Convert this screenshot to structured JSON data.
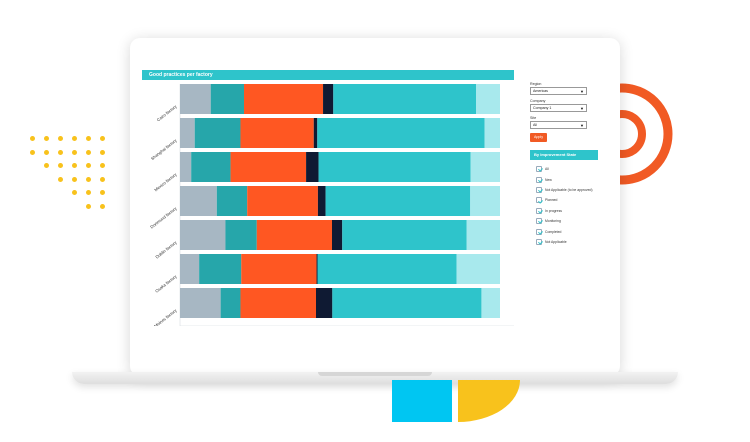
{
  "chart_panel": {
    "title": "Good practices per factory"
  },
  "chart_data": {
    "type": "bar",
    "orientation": "horizontal",
    "stacked": "percent",
    "title": "Good practices per factory",
    "categories": [
      "Cairo factory",
      "Shanghai factory",
      "Mexico factory",
      "Dortmund factory",
      "Dublin factory",
      "Osaka factory",
      "Des Moines factory"
    ],
    "series": [
      {
        "color": "#a7b7c3",
        "values": [
          9.6,
          4.6,
          3.5,
          11.5,
          14.2,
          6.0,
          12.7
        ]
      },
      {
        "color": "#26a6aa",
        "values": [
          10.4,
          14.3,
          12.3,
          9.5,
          9.8,
          13.2,
          6.2
        ]
      },
      {
        "color": "#ff5722",
        "values": [
          24.7,
          22.9,
          23.6,
          22.1,
          23.5,
          23.6,
          23.6
        ]
      },
      {
        "color": "#0f1a33",
        "values": [
          3.2,
          1.1,
          3.9,
          2.4,
          3.2,
          0.3,
          5.1
        ]
      },
      {
        "color": "#2ec4cb",
        "values": [
          44.6,
          52.3,
          47.5,
          45.2,
          38.9,
          43.6,
          46.6
        ]
      },
      {
        "color": "#a8e9ed",
        "values": [
          7.5,
          4.8,
          9.2,
          9.3,
          10.4,
          13.6,
          5.8
        ]
      }
    ],
    "xlim": [
      0,
      100
    ],
    "grid": false
  },
  "filters": {
    "region_label": "Region",
    "region_value": "Americas",
    "company_label": "Company",
    "company_value": "Company 1",
    "site_label": "Site",
    "site_value": "All",
    "apply_label": "Apply"
  },
  "improvement_state": {
    "title": "By Improvement State",
    "items": [
      "All",
      "New",
      "Not Applicable (to be approved)",
      "Planned",
      "In progress",
      "Monitoring",
      "Completed",
      "Not Applicable"
    ]
  },
  "colors": {
    "accent": "#2ec4cb",
    "apply": "#f15a24",
    "decor_orange": "#f15a24",
    "decor_yellow": "#f8c21c",
    "decor_cyan": "#00c6f2"
  }
}
